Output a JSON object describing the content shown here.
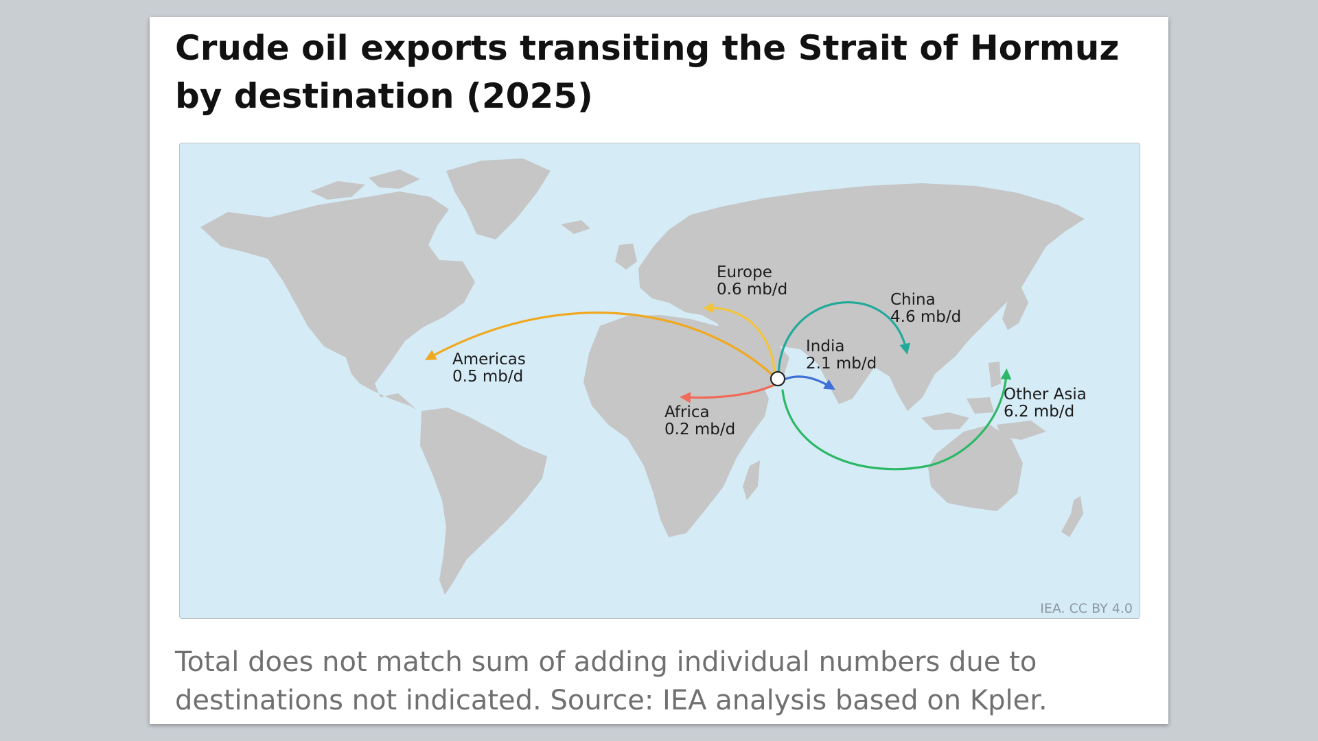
{
  "title": "Crude oil exports transiting the Strait of Hormuz by destination (2025)",
  "credit": "IEA. CC BY 4.0",
  "footnote": "Total does not match sum of adding individual numbers due to destinations not indicated. Source: IEA analysis based on Kpler.",
  "colors": {
    "ocean": "#d5ebf6",
    "land": "#c6c6c6",
    "americas": "#f0a81e",
    "europe": "#f3c43a",
    "africa": "#f06b57",
    "india": "#3f70d8",
    "china": "#21a99a",
    "other_asia": "#2cb866"
  },
  "flows": [
    {
      "id": "americas",
      "name": "Americas",
      "value": "0.5 mb/d"
    },
    {
      "id": "europe",
      "name": "Europe",
      "value": "0.6 mb/d"
    },
    {
      "id": "africa",
      "name": "Africa",
      "value": "0.2 mb/d"
    },
    {
      "id": "india",
      "name": "India",
      "value": "2.1 mb/d"
    },
    {
      "id": "china",
      "name": "China",
      "value": "4.6 mb/d"
    },
    {
      "id": "other_asia",
      "name": "Other Asia",
      "value": "6.2 mb/d"
    }
  ]
}
